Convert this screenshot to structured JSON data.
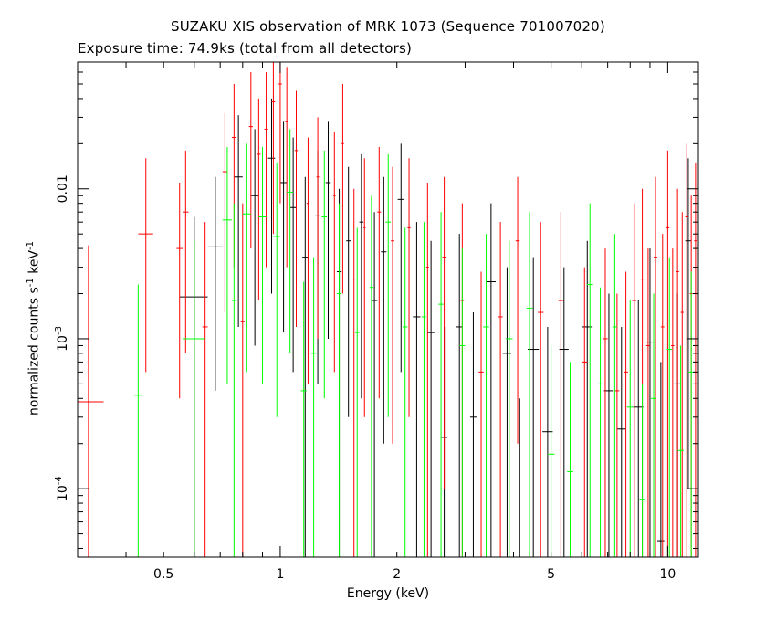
{
  "chart_data": {
    "type": "scatter",
    "title": "SUZAKU XIS observation of MRK 1073 (Sequence 701007020)",
    "subtitle": "Exposure time: 74.9ks (total from all detectors)",
    "xlabel": "Energy (keV)",
    "ylabel_parts": {
      "a": "normalized counts s",
      "b": "-1",
      "c": " keV",
      "d": "-1"
    },
    "xscale": "log",
    "yscale": "log",
    "xlim": [
      0.3,
      12.0
    ],
    "ylim": [
      3.5e-05,
      0.07
    ],
    "xticks": [
      {
        "value": 0.5,
        "label": "0.5"
      },
      {
        "value": 1,
        "label": "1"
      },
      {
        "value": 2,
        "label": "2"
      },
      {
        "value": 5,
        "label": "5"
      },
      {
        "value": 10,
        "label": "10"
      }
    ],
    "yticks": [
      {
        "value": 0.0001,
        "label_base": "10",
        "label_exp": "-4"
      },
      {
        "value": 0.001,
        "label_base": "10",
        "label_exp": "-3"
      },
      {
        "value": 0.01,
        "label_base": "0.01",
        "label_exp": ""
      }
    ],
    "colors": {
      "black": "#000000",
      "red": "#ff0000",
      "green": "#00ff00"
    },
    "series": [
      {
        "color": "black",
        "points": [
          [
            0.6,
            0.0019,
            0.55,
            0.65,
            3.5e-05,
            0.0065
          ],
          [
            0.68,
            0.0041,
            0.65,
            0.71,
            0.00045,
            0.012
          ],
          [
            0.78,
            0.012,
            0.76,
            0.8,
            0.0012,
            0.031
          ],
          [
            0.86,
            0.009,
            0.84,
            0.88,
            0.0009,
            0.025
          ],
          [
            0.95,
            0.016,
            0.93,
            0.97,
            0.002,
            0.04
          ],
          [
            1.02,
            0.011,
            1.0,
            1.04,
            0.0011,
            0.028
          ],
          [
            1.08,
            0.0075,
            1.06,
            1.1,
            0.0006,
            0.022
          ],
          [
            1.16,
            0.0035,
            1.14,
            1.18,
            3.5e-05,
            0.012
          ],
          [
            1.25,
            0.0066,
            1.23,
            1.27,
            0.0005,
            0.018
          ],
          [
            1.33,
            0.011,
            1.31,
            1.35,
            0.001,
            0.028
          ],
          [
            1.42,
            0.0028,
            1.4,
            1.44,
            3.5e-05,
            0.01
          ],
          [
            1.5,
            0.0045,
            1.48,
            1.52,
            0.0003,
            0.014
          ],
          [
            1.62,
            0.006,
            1.6,
            1.64,
            0.0004,
            0.017
          ],
          [
            1.75,
            0.0018,
            1.72,
            1.78,
            3.5e-05,
            0.007
          ],
          [
            1.85,
            0.0038,
            1.82,
            1.88,
            0.0002,
            0.012
          ],
          [
            2.05,
            0.0085,
            2.01,
            2.09,
            0.0006,
            0.02
          ],
          [
            2.25,
            0.0014,
            2.2,
            2.3,
            3.5e-05,
            0.006
          ],
          [
            2.45,
            0.0011,
            2.4,
            2.5,
            3.5e-05,
            0.0045
          ],
          [
            2.65,
            0.00022,
            2.6,
            2.7,
            3.5e-05,
            0.0012
          ],
          [
            2.9,
            0.0012,
            2.84,
            2.96,
            3.5e-05,
            0.005
          ],
          [
            3.15,
            0.0003,
            3.09,
            3.21,
            3.5e-05,
            0.0015
          ],
          [
            3.5,
            0.0024,
            3.4,
            3.6,
            3.5e-05,
            0.008
          ],
          [
            3.85,
            0.0008,
            3.75,
            3.95,
            3.5e-05,
            0.003
          ],
          [
            4.15,
            3.5e-05,
            4.05,
            4.25,
            3.5e-05,
            0.0004
          ],
          [
            4.5,
            0.00085,
            4.35,
            4.65,
            3.5e-05,
            0.0035
          ],
          [
            4.9,
            0.00024,
            4.75,
            5.05,
            3.5e-05,
            0.0012
          ],
          [
            5.4,
            0.00085,
            5.25,
            5.55,
            3.5e-05,
            0.003
          ],
          [
            6.2,
            0.0012,
            6.0,
            6.4,
            3.5e-05,
            0.0045
          ],
          [
            7.05,
            0.00045,
            6.85,
            7.25,
            3.5e-05,
            0.002
          ],
          [
            7.6,
            0.00025,
            7.4,
            7.8,
            3.5e-05,
            0.0012
          ],
          [
            8.4,
            0.00035,
            8.15,
            8.65,
            3.5e-05,
            0.0018
          ],
          [
            9.0,
            0.00095,
            8.8,
            9.2,
            3.5e-05,
            0.004
          ],
          [
            9.6,
            4.5e-05,
            9.4,
            9.8,
            3.5e-05,
            0.0007
          ],
          [
            10.6,
            0.0005,
            10.4,
            10.8,
            3.5e-05,
            0.002
          ],
          [
            11.3,
            0.0045,
            11.1,
            11.5,
            0.0001,
            0.016
          ]
        ]
      },
      {
        "color": "red",
        "points": [
          [
            0.32,
            0.00038,
            0.3,
            0.35,
            3.5e-05,
            0.0042
          ],
          [
            0.45,
            0.005,
            0.43,
            0.47,
            0.0006,
            0.016
          ],
          [
            0.55,
            0.004,
            0.54,
            0.56,
            0.0004,
            0.011
          ],
          [
            0.57,
            0.007,
            0.56,
            0.58,
            0.0008,
            0.018
          ],
          [
            0.64,
            0.0012,
            0.63,
            0.65,
            3.5e-05,
            0.006
          ],
          [
            0.72,
            0.013,
            0.71,
            0.73,
            0.0015,
            0.032
          ],
          [
            0.76,
            0.022,
            0.75,
            0.77,
            0.003,
            0.05
          ],
          [
            0.8,
            0.0013,
            0.79,
            0.81,
            3.5e-05,
            0.008
          ],
          [
            0.84,
            0.026,
            0.83,
            0.85,
            0.004,
            0.06
          ],
          [
            0.88,
            0.017,
            0.87,
            0.89,
            0.0018,
            0.04
          ],
          [
            0.92,
            0.025,
            0.91,
            0.93,
            0.003,
            0.06
          ],
          [
            0.96,
            0.038,
            0.95,
            0.97,
            0.005,
            0.07
          ],
          [
            1.0,
            0.05,
            0.99,
            1.01,
            0.008,
            0.07
          ],
          [
            1.04,
            0.028,
            1.03,
            1.05,
            0.003,
            0.065
          ],
          [
            1.1,
            0.018,
            1.09,
            1.11,
            0.0012,
            0.045
          ],
          [
            1.18,
            0.008,
            1.17,
            1.19,
            0.0005,
            0.022
          ],
          [
            1.25,
            0.012,
            1.24,
            1.26,
            0.001,
            0.03
          ],
          [
            1.38,
            0.009,
            1.37,
            1.39,
            0.0006,
            0.024
          ],
          [
            1.45,
            0.02,
            1.44,
            1.46,
            0.002,
            0.05
          ],
          [
            1.55,
            0.0025,
            1.54,
            1.56,
            3.5e-05,
            0.01
          ],
          [
            1.65,
            0.0055,
            1.64,
            1.66,
            0.0003,
            0.016
          ],
          [
            1.8,
            0.007,
            1.78,
            1.82,
            0.0004,
            0.019
          ],
          [
            1.95,
            0.0045,
            1.93,
            1.97,
            0.0002,
            0.014
          ],
          [
            2.15,
            0.0055,
            2.13,
            2.17,
            0.0003,
            0.016
          ],
          [
            2.4,
            0.003,
            2.38,
            2.42,
            3.5e-05,
            0.011
          ],
          [
            2.65,
            0.0035,
            2.62,
            2.68,
            0.0001,
            0.012
          ],
          [
            2.95,
            0.0018,
            2.92,
            2.98,
            3.5e-05,
            0.008
          ],
          [
            3.3,
            0.0006,
            3.25,
            3.35,
            3.5e-05,
            0.0028
          ],
          [
            3.7,
            0.0014,
            3.65,
            3.75,
            3.5e-05,
            0.006
          ],
          [
            4.1,
            0.0045,
            4.05,
            4.15,
            0.0002,
            0.012
          ],
          [
            4.7,
            0.0015,
            4.62,
            4.78,
            3.5e-05,
            0.006
          ],
          [
            5.3,
            0.0018,
            5.22,
            5.38,
            3.5e-05,
            0.007
          ],
          [
            6.1,
            0.0007,
            6.0,
            6.2,
            3.5e-05,
            0.003
          ],
          [
            6.9,
            0.001,
            6.8,
            7.0,
            3.5e-05,
            0.004
          ],
          [
            7.4,
            0.00045,
            7.3,
            7.5,
            3.5e-05,
            0.002
          ],
          [
            7.8,
            0.0006,
            7.7,
            7.9,
            3.5e-05,
            0.0028
          ],
          [
            8.2,
            0.0018,
            8.1,
            8.3,
            3.5e-05,
            0.008
          ],
          [
            8.6,
            0.0025,
            8.5,
            8.7,
            3.5e-05,
            0.01
          ],
          [
            8.9,
            0.0009,
            8.8,
            9.0,
            3.5e-05,
            0.004
          ],
          [
            9.3,
            0.0035,
            9.2,
            9.4,
            3.5e-05,
            0.012
          ],
          [
            9.7,
            0.0012,
            9.6,
            9.8,
            3.5e-05,
            0.005
          ],
          [
            10.0,
            0.0055,
            9.9,
            10.1,
            3.5e-05,
            0.018
          ],
          [
            10.3,
            0.0009,
            10.2,
            10.4,
            3.5e-05,
            0.004
          ],
          [
            10.6,
            0.0028,
            10.5,
            10.7,
            3.5e-05,
            0.01
          ],
          [
            10.9,
            0.0015,
            10.8,
            11.0,
            3.5e-05,
            0.007
          ],
          [
            11.2,
            0.0065,
            11.1,
            11.3,
            3.5e-05,
            0.02
          ],
          [
            11.5,
            0.002,
            11.4,
            11.6,
            3.5e-05,
            0.009
          ],
          [
            11.8,
            0.0045,
            11.7,
            11.9,
            3.5e-05,
            0.015
          ]
        ]
      },
      {
        "color": "green",
        "points": [
          [
            0.43,
            0.00042,
            0.42,
            0.44,
            3.5e-05,
            0.0023
          ],
          [
            0.6,
            0.001,
            0.56,
            0.64,
            3.5e-05,
            0.0045
          ],
          [
            0.73,
            0.0062,
            0.71,
            0.75,
            0.0005,
            0.019
          ],
          [
            0.76,
            0.0018,
            0.75,
            0.77,
            3.5e-05,
            0.008
          ],
          [
            0.82,
            0.0068,
            0.8,
            0.84,
            0.0006,
            0.02
          ],
          [
            0.9,
            0.0065,
            0.88,
            0.92,
            0.0005,
            0.019
          ],
          [
            0.98,
            0.0048,
            0.96,
            1.0,
            0.0003,
            0.015
          ],
          [
            1.06,
            0.0095,
            1.04,
            1.08,
            0.0008,
            0.025
          ],
          [
            1.15,
            0.00045,
            1.13,
            1.17,
            3.5e-05,
            0.0024
          ],
          [
            1.22,
            0.0008,
            1.2,
            1.24,
            3.5e-05,
            0.0035
          ],
          [
            1.3,
            0.0065,
            1.28,
            1.32,
            0.0004,
            0.018
          ],
          [
            1.42,
            0.002,
            1.4,
            1.44,
            3.5e-05,
            0.008
          ],
          [
            1.58,
            0.0011,
            1.56,
            1.6,
            3.5e-05,
            0.0055
          ],
          [
            1.72,
            0.0022,
            1.7,
            1.74,
            3.5e-05,
            0.009
          ],
          [
            1.9,
            0.006,
            1.87,
            1.93,
            0.0003,
            0.017
          ],
          [
            2.1,
            0.0012,
            2.07,
            2.13,
            3.5e-05,
            0.0055
          ],
          [
            2.35,
            0.0014,
            2.32,
            2.38,
            3.5e-05,
            0.006
          ],
          [
            2.6,
            0.0017,
            2.56,
            2.64,
            3.5e-05,
            0.007
          ],
          [
            2.95,
            0.0009,
            2.9,
            3.0,
            3.5e-05,
            0.004
          ],
          [
            3.4,
            0.0012,
            3.34,
            3.46,
            3.5e-05,
            0.005
          ],
          [
            3.9,
            0.001,
            3.82,
            3.98,
            3.5e-05,
            0.0045
          ],
          [
            4.4,
            0.0016,
            4.32,
            4.48,
            3.5e-05,
            0.007
          ],
          [
            5.0,
            0.00017,
            4.9,
            5.1,
            3.5e-05,
            0.0009
          ],
          [
            5.6,
            0.00013,
            5.5,
            5.7,
            3.5e-05,
            0.0007
          ],
          [
            6.3,
            0.0023,
            6.18,
            6.42,
            3.5e-05,
            0.008
          ],
          [
            6.7,
            0.0005,
            6.6,
            6.8,
            3.5e-05,
            0.0022
          ],
          [
            7.3,
            0.0012,
            7.2,
            7.4,
            3.5e-05,
            0.005
          ],
          [
            8.0,
            0.00035,
            7.85,
            8.15,
            3.5e-05,
            0.0018
          ],
          [
            8.6,
            8.5e-05,
            8.45,
            8.75,
            3.5e-05,
            0.0005
          ],
          [
            9.2,
            0.0004,
            9.05,
            9.35,
            3.5e-05,
            0.002
          ],
          [
            10.1,
            0.00085,
            9.95,
            10.25,
            3.5e-05,
            0.0035
          ],
          [
            10.8,
            0.00018,
            10.6,
            11.0,
            3.5e-05,
            0.0009
          ],
          [
            11.5,
            0.0006,
            11.3,
            11.7,
            3.5e-05,
            0.0028
          ]
        ]
      }
    ]
  }
}
